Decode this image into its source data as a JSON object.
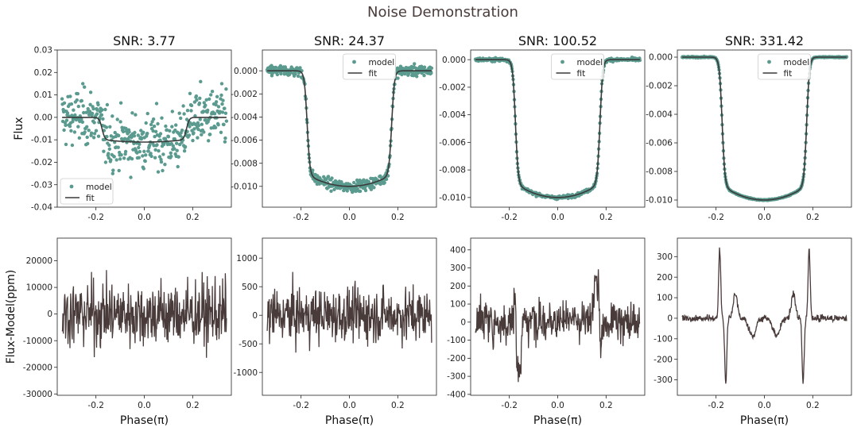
{
  "figure": {
    "suptitle": "Noise Demonstration"
  },
  "colors": {
    "model": "#5a9a8f",
    "fit": "#3a3a3a",
    "residual": "#4a3b3b",
    "title": "#4a3b3b"
  },
  "axis_labels": {
    "top_ylabel": "Flux",
    "bottom_ylabel": "Flux-Model(ppm)",
    "xlabel": "Phase(π)"
  },
  "legend": {
    "model": "model",
    "fit": "fit"
  },
  "chart_data": [
    {
      "type": "scatter",
      "title": "SNR: 3.77",
      "xlim": [
        -0.36,
        0.36
      ],
      "ylim": [
        -0.04,
        0.03
      ],
      "xticks": [
        "-0.2",
        "0.0",
        "0.2"
      ],
      "xtick_values": [
        -0.2,
        0,
        0.2
      ],
      "yticks": [
        "-0.04",
        "-0.03",
        "-0.02",
        "-0.01",
        "0.00",
        "0.01",
        "0.02",
        "0.03"
      ],
      "ytick_values": [
        -0.04,
        -0.03,
        -0.02,
        -0.01,
        0,
        0.01,
        0.02,
        0.03
      ],
      "legend_loc": "lower-left",
      "depth": 0.011,
      "noise": 0.0105,
      "series": [
        {
          "name": "model"
        },
        {
          "name": "fit"
        }
      ]
    },
    {
      "type": "scatter",
      "title": "SNR: 24.37",
      "xlim": [
        -0.36,
        0.36
      ],
      "ylim": [
        -0.0118,
        0.0018
      ],
      "xticks": [
        "-0.2",
        "0.0",
        "0.2"
      ],
      "xtick_values": [
        -0.2,
        0,
        0.2
      ],
      "yticks": [
        "0.000",
        "-0.002",
        "-0.004",
        "-0.006",
        "-0.008",
        "-0.010"
      ],
      "ytick_values": [
        0,
        -0.002,
        -0.004,
        -0.006,
        -0.008,
        -0.01
      ],
      "legend_loc": "top-center",
      "depth": 0.01,
      "noise": 0.0004,
      "series": [
        {
          "name": "model"
        },
        {
          "name": "fit"
        }
      ]
    },
    {
      "type": "scatter",
      "title": "SNR: 100.52",
      "xlim": [
        -0.36,
        0.36
      ],
      "ylim": [
        -0.0107,
        0.0007
      ],
      "xticks": [
        "-0.2",
        "0.0",
        "0.2"
      ],
      "xtick_values": [
        -0.2,
        0,
        0.2
      ],
      "yticks": [
        "0.000",
        "-0.002",
        "-0.004",
        "-0.006",
        "-0.008",
        "-0.010"
      ],
      "ytick_values": [
        0,
        -0.002,
        -0.004,
        -0.006,
        -0.008,
        -0.01
      ],
      "legend_loc": "top-center",
      "depth": 0.01,
      "noise": 0.0001,
      "series": [
        {
          "name": "model"
        },
        {
          "name": "fit"
        }
      ]
    },
    {
      "type": "scatter",
      "title": "SNR: 331.42",
      "xlim": [
        -0.36,
        0.36
      ],
      "ylim": [
        -0.0105,
        0.0005
      ],
      "xticks": [
        "-0.2",
        "0.0",
        "0.2"
      ],
      "xtick_values": [
        -0.2,
        0,
        0.2
      ],
      "yticks": [
        "0.000",
        "-0.002",
        "-0.004",
        "-0.006",
        "-0.008",
        "-0.010"
      ],
      "ytick_values": [
        0,
        -0.002,
        -0.004,
        -0.006,
        -0.008,
        -0.01
      ],
      "legend_loc": "top-center",
      "depth": 0.01,
      "noise": 3e-05,
      "series": [
        {
          "name": "model"
        },
        {
          "name": "fit"
        }
      ]
    },
    {
      "type": "line",
      "xlim": [
        -0.36,
        0.36
      ],
      "ylim": [
        -30500,
        28500
      ],
      "xticks": [
        "-0.2",
        "0.0",
        "0.2"
      ],
      "xtick_values": [
        -0.2,
        0,
        0.2
      ],
      "yticks": [
        "-30000",
        "-20000",
        "-10000",
        "0",
        "10000",
        "20000"
      ],
      "ytick_values": [
        -30000,
        -20000,
        -10000,
        0,
        10000,
        20000
      ],
      "amplitude": 10500,
      "spike": 0
    },
    {
      "type": "line",
      "xlim": [
        -0.36,
        0.36
      ],
      "ylim": [
        -1400,
        1350
      ],
      "xticks": [
        "-0.2",
        "0.0",
        "0.2"
      ],
      "xtick_values": [
        -0.2,
        0,
        0.2
      ],
      "yticks": [
        "-1000",
        "-500",
        "0",
        "500",
        "1000"
      ],
      "ytick_values": [
        -1000,
        -500,
        0,
        500,
        1000
      ],
      "amplitude": 400,
      "spike": 0
    },
    {
      "type": "line",
      "xlim": [
        -0.36,
        0.36
      ],
      "ylim": [
        -405,
        465
      ],
      "xticks": [
        "-0.2",
        "0.0",
        "0.2"
      ],
      "xtick_values": [
        -0.2,
        0,
        0.2
      ],
      "yticks": [
        "-400",
        "-300",
        "-200",
        "-100",
        "0",
        "100",
        "200",
        "300",
        "400"
      ],
      "ytick_values": [
        -400,
        -300,
        -200,
        -100,
        0,
        100,
        200,
        300,
        400
      ],
      "amplitude": 105,
      "spike": 1
    },
    {
      "type": "line",
      "xlim": [
        -0.36,
        0.36
      ],
      "ylim": [
        -375,
        390
      ],
      "xticks": [
        "-0.2",
        "0.0",
        "0.2"
      ],
      "xtick_values": [
        -0.2,
        0,
        0.2
      ],
      "yticks": [
        "-300",
        "-200",
        "-100",
        "0",
        "100",
        "200",
        "300"
      ],
      "ytick_values": [
        -300,
        -200,
        -100,
        0,
        100,
        200,
        300
      ],
      "amplitude": 14,
      "spike": 2
    }
  ]
}
